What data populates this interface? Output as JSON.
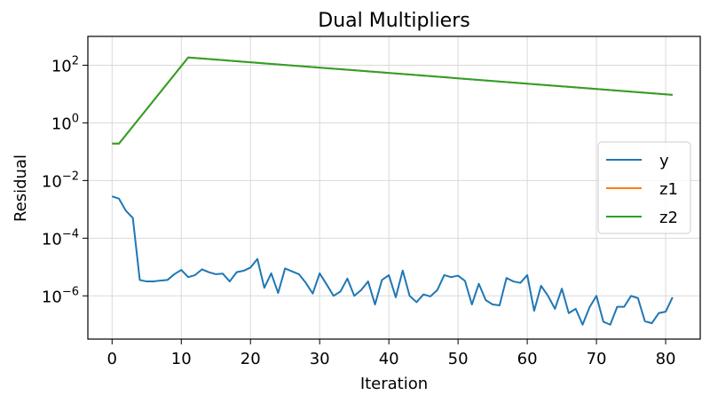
{
  "chart_data": {
    "type": "line",
    "title": "Dual Multipliers",
    "xlabel": "Iteration",
    "ylabel": "Residual",
    "xlim": [
      -3.5,
      85
    ],
    "ylim_log10": [
      -7.5,
      3.0
    ],
    "yscale": "log",
    "grid": true,
    "legend_position": "right",
    "x_ticks": [
      {
        "value": 0,
        "label": "0"
      },
      {
        "value": 10,
        "label": "10"
      },
      {
        "value": 20,
        "label": "20"
      },
      {
        "value": 30,
        "label": "30"
      },
      {
        "value": 40,
        "label": "40"
      },
      {
        "value": 50,
        "label": "50"
      },
      {
        "value": 60,
        "label": "60"
      },
      {
        "value": 70,
        "label": "70"
      },
      {
        "value": 80,
        "label": "80"
      }
    ],
    "y_ticks": [
      {
        "exp": 2,
        "base": "10",
        "sup": "2"
      },
      {
        "exp": 0,
        "base": "10",
        "sup": "0"
      },
      {
        "exp": -2,
        "base": "10",
        "sup": "−2"
      },
      {
        "exp": -4,
        "base": "10",
        "sup": "−4"
      },
      {
        "exp": -6,
        "base": "10",
        "sup": "−6"
      }
    ],
    "series": [
      {
        "name": "y",
        "color": "#1f77b4",
        "x": [
          0,
          1,
          2,
          3,
          4,
          5,
          6,
          7,
          8,
          9,
          10,
          11,
          12,
          13,
          14,
          15,
          16,
          17,
          18,
          19,
          20,
          21,
          22,
          23,
          24,
          25,
          26,
          27,
          28,
          29,
          30,
          31,
          32,
          33,
          34,
          35,
          36,
          37,
          38,
          39,
          40,
          41,
          42,
          43,
          44,
          45,
          46,
          47,
          48,
          49,
          50,
          51,
          52,
          53,
          54,
          55,
          56,
          57,
          58,
          59,
          60,
          61,
          62,
          63,
          64,
          65,
          66,
          67,
          68,
          69,
          70,
          71,
          72,
          73,
          74,
          75,
          76,
          77,
          78,
          79,
          80,
          81
        ],
        "log10_values": [
          -2.55,
          -2.63,
          -3.05,
          -3.3,
          -5.45,
          -5.5,
          -5.5,
          -5.47,
          -5.45,
          -5.25,
          -5.1,
          -5.35,
          -5.28,
          -5.08,
          -5.18,
          -5.25,
          -5.23,
          -5.5,
          -5.18,
          -5.13,
          -5.02,
          -4.72,
          -5.72,
          -5.22,
          -5.9,
          -5.05,
          -5.15,
          -5.25,
          -5.55,
          -5.92,
          -5.22,
          -5.6,
          -6.0,
          -5.85,
          -5.4,
          -6.0,
          -5.8,
          -5.5,
          -6.3,
          -5.45,
          -5.28,
          -6.05,
          -5.12,
          -6.0,
          -6.22,
          -5.95,
          -6.02,
          -5.8,
          -5.28,
          -5.35,
          -5.3,
          -5.48,
          -6.3,
          -5.58,
          -6.15,
          -6.3,
          -6.33,
          -5.38,
          -5.5,
          -5.55,
          -5.28,
          -6.52,
          -5.65,
          -6.0,
          -6.45,
          -5.75,
          -6.6,
          -6.45,
          -7.0,
          -6.4,
          -6.0,
          -6.9,
          -7.0,
          -6.38,
          -6.38,
          -6.0,
          -6.08,
          -6.88,
          -6.95,
          -6.6,
          -6.55,
          -6.05
        ]
      },
      {
        "name": "z1",
        "color": "#ff7f0e",
        "x": [
          0,
          1,
          11,
          81
        ],
        "log10_values": [
          -0.72,
          -0.72,
          2.27,
          0.97
        ]
      },
      {
        "name": "z2",
        "color": "#2ca02c",
        "x": [
          0,
          1,
          11,
          81
        ],
        "log10_values": [
          -0.72,
          -0.72,
          2.27,
          0.97
        ]
      }
    ]
  }
}
